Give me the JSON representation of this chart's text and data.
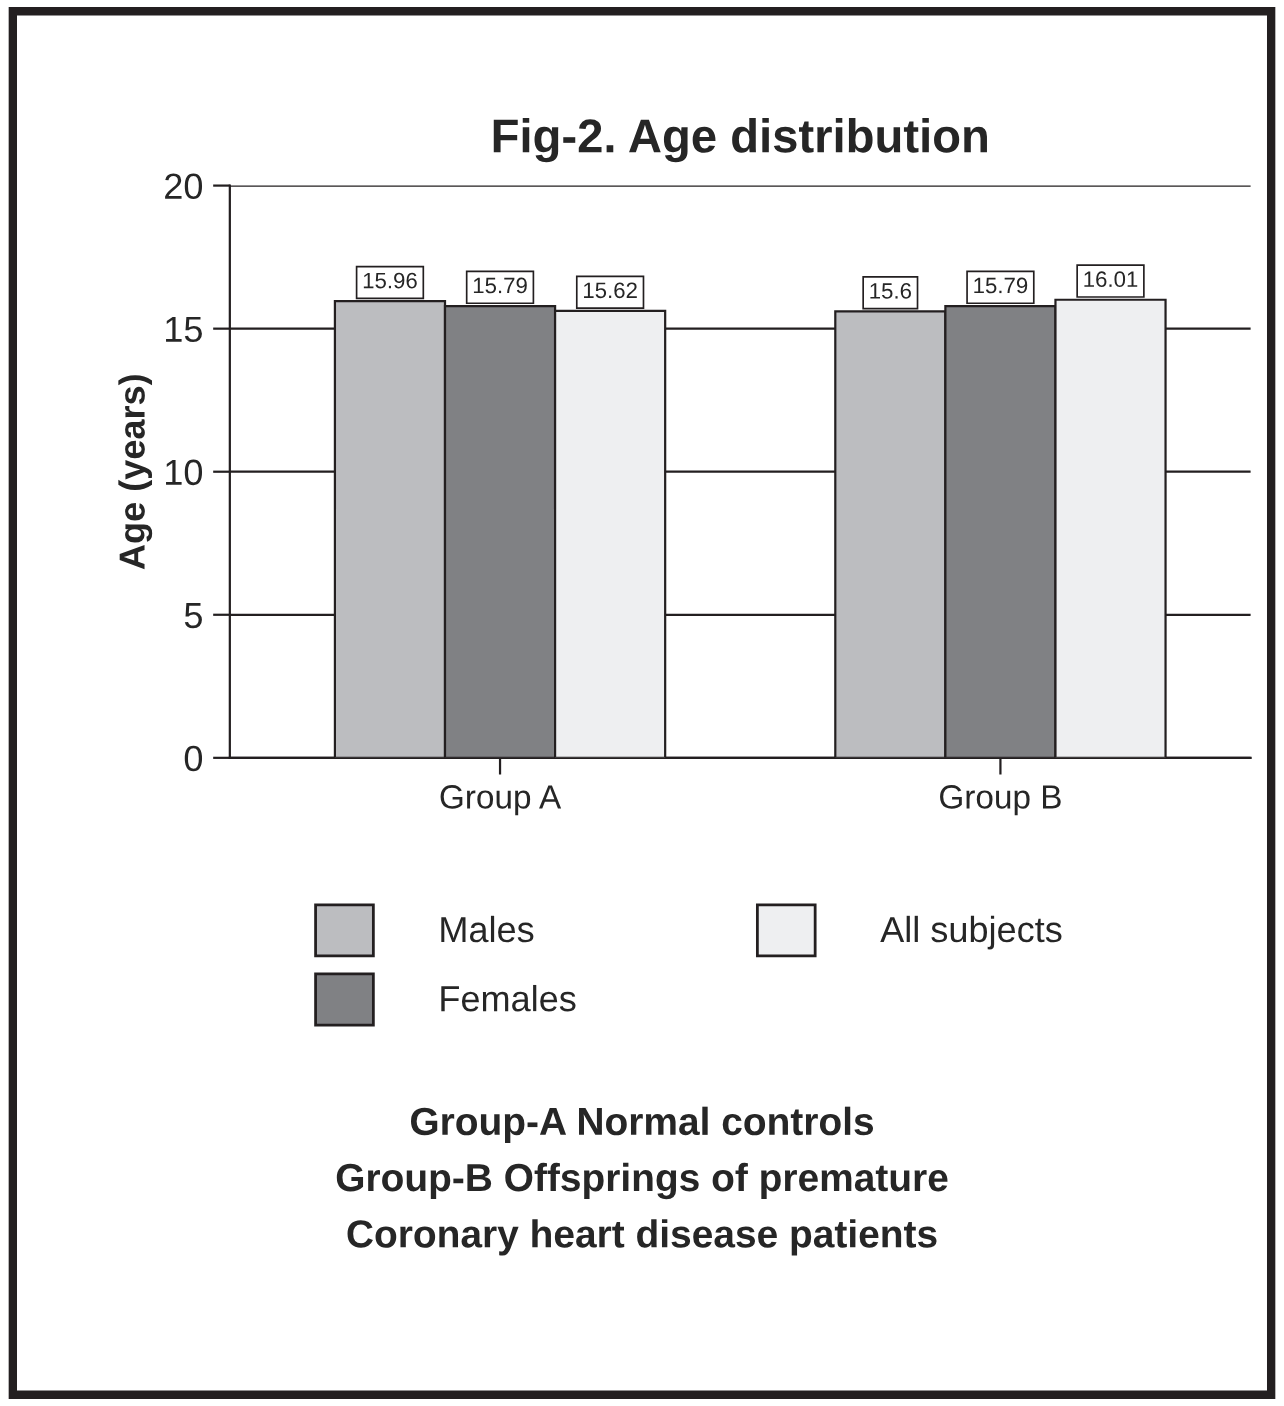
{
  "chart_data": {
    "type": "bar",
    "title": "Fig-2. Age distribution",
    "ylabel": "Age (years)",
    "categories": [
      "Group A",
      "Group B"
    ],
    "series": [
      {
        "name": "Males",
        "color": "#bcbdc0",
        "values": [
          15.96,
          15.6
        ]
      },
      {
        "name": "Females",
        "color": "#808184",
        "values": [
          15.79,
          15.79
        ]
      },
      {
        "name": "All subjects",
        "color": "#eeeff1",
        "values": [
          15.62,
          16.01
        ]
      }
    ],
    "ylim": [
      0,
      20
    ],
    "yticks": [
      0,
      5,
      10,
      15,
      20
    ],
    "grid": "y",
    "legend": "bottom",
    "data_labels": true,
    "annotations": [
      "Group-A Normal controls",
      "Group-B Offsprings of premature",
      "Coronary heart disease patients"
    ]
  }
}
